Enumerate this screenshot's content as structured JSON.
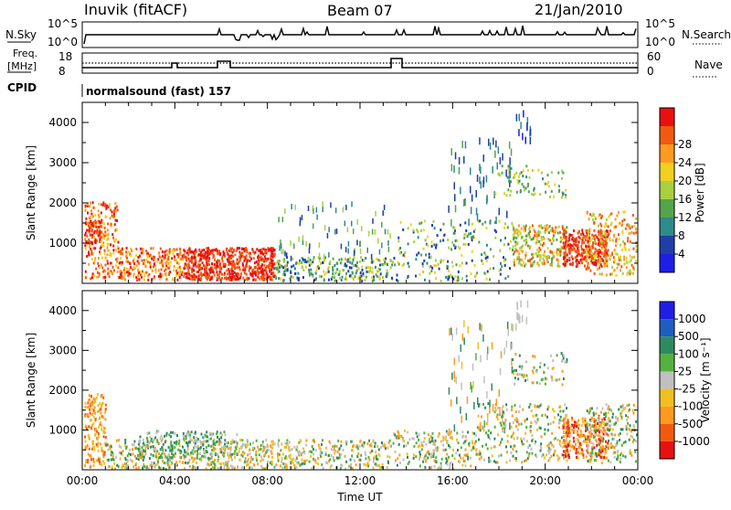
{
  "header": {
    "station": "Inuvik (fitACF)",
    "beam": "Beam 07",
    "date": "21/Jan/2010"
  },
  "nsky_panel": {
    "left_label": "N.Sky",
    "right_label": "N.Search",
    "left_ticks": [
      "10^5",
      "10^0"
    ],
    "right_ticks": [
      "10^5",
      "10^0"
    ]
  },
  "freq_panel": {
    "left_label": "Freq.",
    "left_unit": "[MHz]",
    "right_label": "Nave",
    "left_ticks": [
      "18",
      "8"
    ],
    "right_ticks": [
      "60",
      "0"
    ]
  },
  "cpid": {
    "label": "CPID",
    "value": "normalsound (fast) 157"
  },
  "colors": {
    "power_scale": [
      "#1e1ee8",
      "#1f3fa6",
      "#2f8a8a",
      "#55a44a",
      "#a8d040",
      "#f0d020",
      "#ff9a20",
      "#f05a10",
      "#e81010"
    ],
    "velocity_scale": [
      "#1e1ee8",
      "#1f5ec0",
      "#2f8a60",
      "#55b040",
      "#c0c0c0",
      "#f0c020",
      "#ff9a20",
      "#f05a10",
      "#e81010"
    ]
  },
  "chart_data": [
    {
      "type": "heatmap",
      "panel": "power",
      "xlabel": "",
      "ylabel": "Slant Range [km]",
      "yticks": [
        "1000",
        "2000",
        "3000",
        "4000"
      ],
      "ylim": [
        0,
        4500
      ],
      "xlim": [
        0,
        24
      ],
      "colorbar_label": "Power [dB]",
      "colorbar_ticks": [
        "4",
        "8",
        "12",
        "16",
        "20",
        "24",
        "28"
      ]
    },
    {
      "type": "heatmap",
      "panel": "velocity",
      "xlabel": "Time UT",
      "ylabel": "Slant Range [km]",
      "yticks": [
        "1000",
        "2000",
        "3000",
        "4000"
      ],
      "ylim": [
        0,
        4500
      ],
      "xlim": [
        0,
        24
      ],
      "xticks": [
        "00:00",
        "04:00",
        "08:00",
        "12:00",
        "16:00",
        "20:00",
        "00:00"
      ],
      "colorbar_label": "Velocity [m s⁻¹]",
      "colorbar_ticks": [
        "1000",
        "500",
        "100",
        "25",
        "-25",
        "-100",
        "-500",
        "-1000"
      ]
    }
  ]
}
